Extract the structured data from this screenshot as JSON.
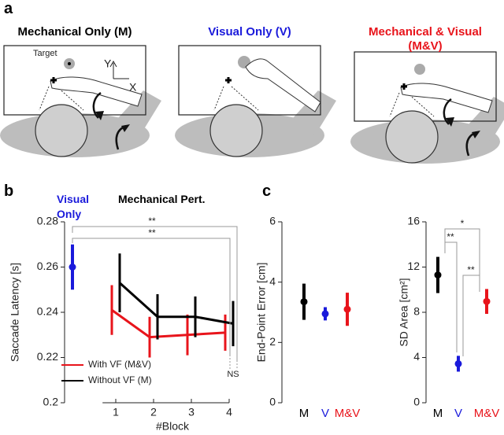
{
  "panel_letters": [
    "a",
    "b",
    "c"
  ],
  "illustrations": [
    {
      "title": "Mechanical Only (M)",
      "color": "#000000"
    },
    {
      "title": "Visual Only (V)",
      "color": "#1a1adb"
    },
    {
      "title": "Mechanical & Visual (M&V)",
      "color": "#e8141b"
    }
  ],
  "illustration_labels": {
    "target": "Target",
    "y": "Y",
    "x": "X"
  },
  "chart_data": [
    {
      "type": "line",
      "ylabel": "Saccade Latency [s]",
      "xlabel": "#Block",
      "header": "Mechanical Pert.",
      "x": [
        1,
        2,
        3,
        4
      ],
      "xlim": [
        0.65,
        4
      ],
      "xticks": [
        1,
        2,
        3,
        4
      ],
      "ylim": [
        0.2,
        0.28
      ],
      "yticks": [
        0.2,
        0.22,
        0.24,
        0.26,
        0.28
      ],
      "reference": {
        "label": "Visual Only",
        "value": 0.26,
        "error": 0.01,
        "color": "#1a1adb"
      },
      "series": [
        {
          "name": "With VF (M&V)",
          "color": "#e8141b",
          "values": [
            0.241,
            0.229,
            0.23,
            0.231
          ],
          "errors": [
            0.011,
            0.009,
            0.009,
            0.008
          ]
        },
        {
          "name": "Without VF (M)",
          "color": "#000000",
          "values": [
            0.253,
            0.238,
            0.238,
            0.235
          ],
          "errors": [
            0.013,
            0.01,
            0.009,
            0.01
          ]
        }
      ],
      "annotations": [
        "**",
        "**",
        "NS"
      ]
    },
    {
      "type": "errorbar",
      "ylabel": "End-Point Error [cm]",
      "categories": [
        "M",
        "V",
        "M&V"
      ],
      "colors": [
        "#000000",
        "#1a1adb",
        "#e8141b"
      ],
      "values": [
        3.35,
        2.95,
        3.1
      ],
      "errors": [
        0.6,
        0.22,
        0.55
      ],
      "ylim": [
        0,
        6
      ],
      "yticks": [
        0,
        2,
        4,
        6
      ]
    },
    {
      "type": "errorbar",
      "ylabel": "SD Area [cm²]",
      "categories": [
        "M",
        "V",
        "M&V"
      ],
      "colors": [
        "#000000",
        "#1a1adb",
        "#e8141b"
      ],
      "values": [
        11.3,
        3.45,
        8.96
      ],
      "errors": [
        1.6,
        0.7,
        1.1
      ],
      "ylim": [
        0,
        16
      ],
      "yticks": [
        0,
        4,
        8,
        12,
        16
      ],
      "annotations": [
        "*",
        "**",
        "**"
      ]
    }
  ]
}
